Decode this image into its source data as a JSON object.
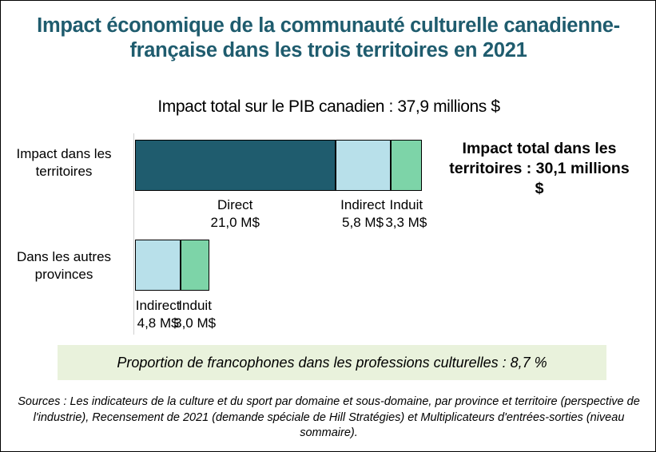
{
  "chart_data": {
    "type": "bar",
    "orientation": "horizontal",
    "stacked": true,
    "title": "Impact économique de la communauté culturelle canadienne-française dans les trois territoires en 2021",
    "subtitle": "Impact total sur le PIB canadien : 37,9 millions $",
    "side_annotation": "Impact total dans les territoires : 30,1 millions $",
    "categories": [
      "Impact dans les territoires",
      "Dans les autres provinces"
    ],
    "series": [
      {
        "name": "Direct",
        "color": "#1f5c6e",
        "values": [
          21.0,
          0
        ]
      },
      {
        "name": "Indirect",
        "color": "#b8e0ea",
        "values": [
          5.8,
          4.8
        ]
      },
      {
        "name": "Induit",
        "color": "#7dd4a8",
        "values": [
          3.3,
          3.0
        ]
      }
    ],
    "data_labels": [
      [
        {
          "name": "Direct",
          "value": "21,0 M$"
        },
        {
          "name": "Indirect",
          "value": "5,8 M$"
        },
        {
          "name": "Induit",
          "value": "3,3 M$"
        }
      ],
      [
        {
          "name": "Indirect",
          "value": "4,8 M$"
        },
        {
          "name": "Induit",
          "value": "3,0 M$"
        }
      ]
    ],
    "xlabel": "",
    "ylabel": "",
    "xlim": [
      0,
      30.1
    ],
    "grid": false,
    "legend": "none"
  },
  "note": "Proportion de francophones dans les professions culturelles : 8,7 %",
  "sources": "Sources : Les indicateurs de la culture et du sport par domaine et sous-domaine, par province et territoire (perspective de l'industrie), Recensement de 2021 (demande spéciale de Hill Stratégies) et Multiplicateurs d'entrées-sorties (niveau sommaire)."
}
